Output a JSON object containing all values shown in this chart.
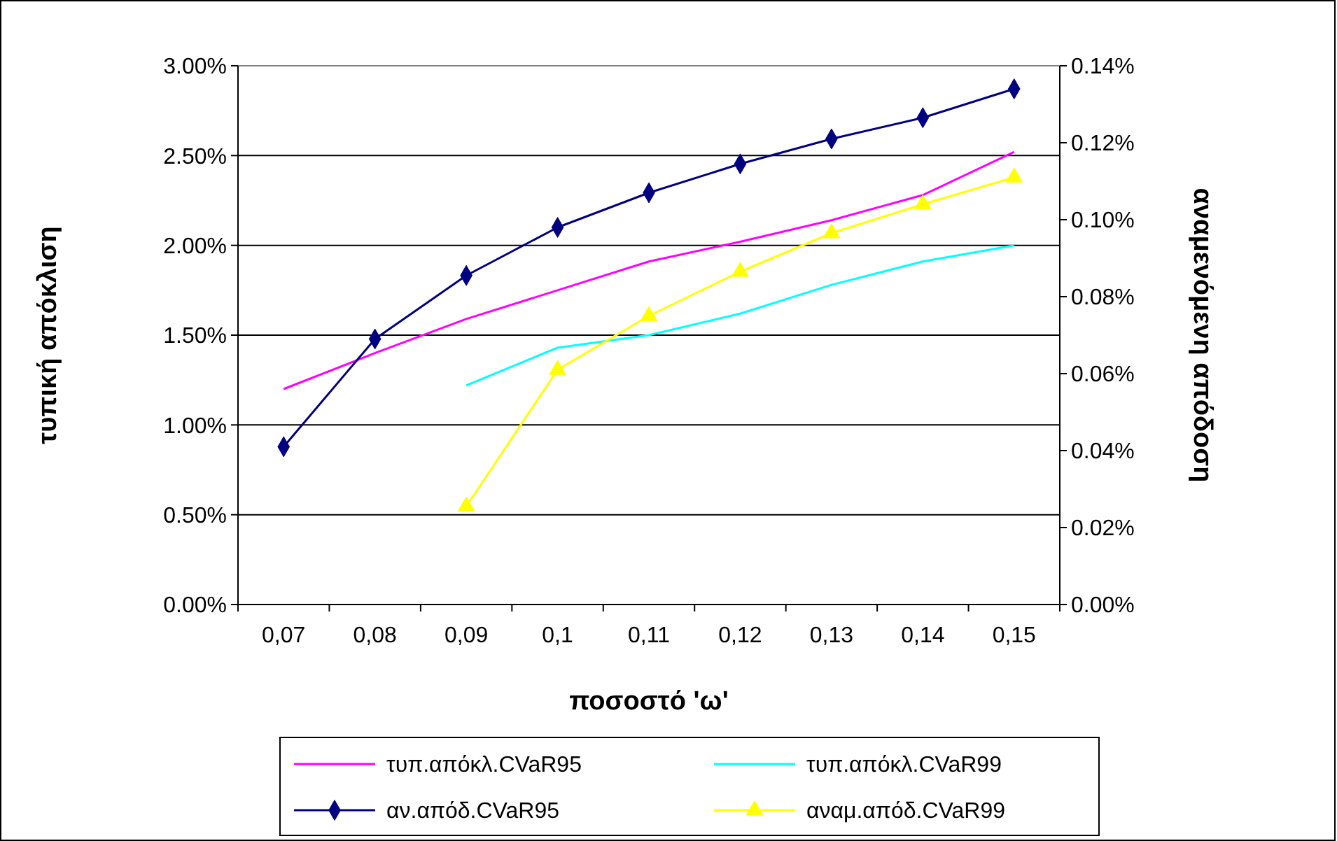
{
  "chart_data": {
    "type": "line",
    "xlabel": "ποσοστό 'ω'",
    "ylabel": "τυπική απόκλιση",
    "y2label": "αναμενόμενη απόδοση",
    "categories": [
      "0,07",
      "0,08",
      "0,09",
      "0,1",
      "0,11",
      "0,12",
      "0,13",
      "0,14",
      "0,15"
    ],
    "ylim": [
      0,
      3
    ],
    "yticks": [
      {
        "value": 0,
        "label": "0.00%"
      },
      {
        "value": 0.5,
        "label": "0.50%"
      },
      {
        "value": 1,
        "label": "1.00%"
      },
      {
        "value": 1.5,
        "label": "1.50%"
      },
      {
        "value": 2,
        "label": "2.00%"
      },
      {
        "value": 2.5,
        "label": "2.50%"
      },
      {
        "value": 3,
        "label": "3.00%"
      }
    ],
    "y2lim": [
      0,
      0.14
    ],
    "y2ticks": [
      {
        "value": 0,
        "label": "0.00%"
      },
      {
        "value": 0.02,
        "label": "0.02%"
      },
      {
        "value": 0.04,
        "label": "0.04%"
      },
      {
        "value": 0.06,
        "label": "0.06%"
      },
      {
        "value": 0.08,
        "label": "0.08%"
      },
      {
        "value": 0.1,
        "label": "0.10%"
      },
      {
        "value": 0.12,
        "label": "0.12%"
      },
      {
        "value": 0.14,
        "label": "0.14%"
      }
    ],
    "grid": "y",
    "legend": "bottom",
    "series": [
      {
        "name": "τυπ.απόκλ.CVaR95",
        "color": "#ff00ff",
        "marker": "none",
        "values": [
          1.2,
          1.4,
          1.59,
          1.75,
          1.91,
          2.02,
          2.14,
          2.28,
          2.52
        ]
      },
      {
        "name": "τυπ.απόκλ.CVaR99",
        "color": "#00ffff",
        "marker": "none",
        "values": [
          null,
          null,
          1.22,
          1.43,
          1.5,
          1.62,
          1.78,
          1.91,
          2.0
        ]
      },
      {
        "name": "αν.απόδ.CVaR95",
        "color": "#000080",
        "marker": "diamond",
        "axis": "y2",
        "values": [
          0.041,
          0.069,
          0.0855,
          0.098,
          0.107,
          0.1145,
          0.121,
          0.1265,
          0.134
        ]
      },
      {
        "name": "αναμ.απόδ.CVaR99",
        "color": "#ffff00",
        "marker": "triangle",
        "axis": "y2",
        "values": [
          null,
          null,
          0.0255,
          0.061,
          0.075,
          0.0865,
          0.0965,
          0.104,
          0.111
        ]
      }
    ]
  }
}
